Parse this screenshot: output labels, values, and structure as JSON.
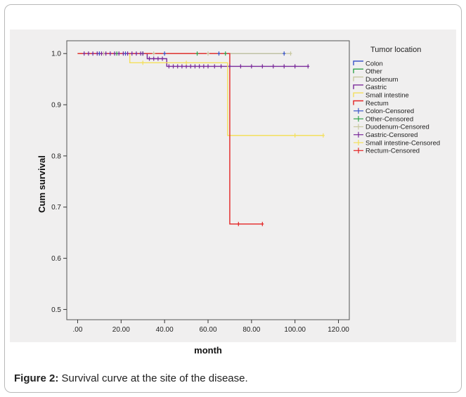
{
  "caption": {
    "label": "Figure 2:",
    "text": " Survival curve at the site of the disease."
  },
  "colors": {
    "Colon": "#3a55c8",
    "Other": "#2fa34a",
    "Duodenum": "#c8c8a0",
    "Gastric": "#7a2a9a",
    "Small intestine": "#f3df5c",
    "Rectum": "#e32424"
  },
  "chart_data": {
    "type": "line",
    "step": true,
    "xlabel": "month",
    "ylabel": "Cum survival",
    "xlim": [
      -5,
      125
    ],
    "ylim": [
      0.48,
      1.025
    ],
    "x_ticks": [
      0,
      20,
      40,
      60,
      80,
      100,
      120
    ],
    "x_tick_labels": [
      ".00",
      "20.00",
      "40.00",
      "60.00",
      "80.00",
      "100.00",
      "120.00"
    ],
    "y_ticks": [
      0.5,
      0.6,
      0.7,
      0.8,
      0.9,
      1.0
    ],
    "y_tick_labels": [
      "0.5",
      "0.6",
      "0.7",
      "0.8",
      "0.9",
      "1.0"
    ],
    "grid": false,
    "legend_title": "Tumor location",
    "legend_position": "right",
    "legend_entries": [
      "Colon",
      "Other",
      "Duodenum",
      "Gastric",
      "Small intestine",
      "Rectum",
      "Colon-Censored",
      "Other-Censored",
      "Duodenum-Censored",
      "Gastric-Censored",
      "Small intestine-Censored",
      "Rectum-Censored"
    ],
    "series": [
      {
        "name": "Colon",
        "steps": [
          [
            0,
            1.0
          ],
          [
            95,
            1.0
          ]
        ],
        "censored": [
          10,
          22,
          40,
          65,
          95
        ]
      },
      {
        "name": "Other",
        "steps": [
          [
            0,
            1.0
          ],
          [
            68,
            1.0
          ]
        ],
        "censored": [
          18,
          30,
          55,
          68
        ]
      },
      {
        "name": "Duodenum",
        "steps": [
          [
            0,
            1.0
          ],
          [
            98,
            1.0
          ]
        ],
        "censored": [
          12,
          35,
          60,
          98
        ]
      },
      {
        "name": "Gastric",
        "steps": [
          [
            0,
            1.0
          ],
          [
            32,
            0.99
          ],
          [
            41,
            0.975
          ],
          [
            106,
            0.975
          ]
        ],
        "censored": [
          3,
          5,
          7,
          9,
          11,
          13,
          15,
          17,
          19,
          21,
          23,
          25,
          27,
          29,
          30,
          33,
          35,
          37,
          39,
          42,
          44,
          46,
          48,
          50,
          52,
          54,
          56,
          58,
          60,
          63,
          66,
          70,
          75,
          80,
          85,
          90,
          95,
          100,
          106
        ]
      },
      {
        "name": "Small intestine",
        "steps": [
          [
            0,
            1.0
          ],
          [
            24,
            0.982
          ],
          [
            69,
            0.84
          ],
          [
            113,
            0.84
          ]
        ],
        "censored": [
          30,
          50,
          100,
          113
        ]
      },
      {
        "name": "Rectum",
        "steps": [
          [
            0,
            1.0
          ],
          [
            70,
            0.667
          ],
          [
            85,
            0.667
          ]
        ],
        "censored": [
          74,
          85
        ]
      }
    ]
  }
}
